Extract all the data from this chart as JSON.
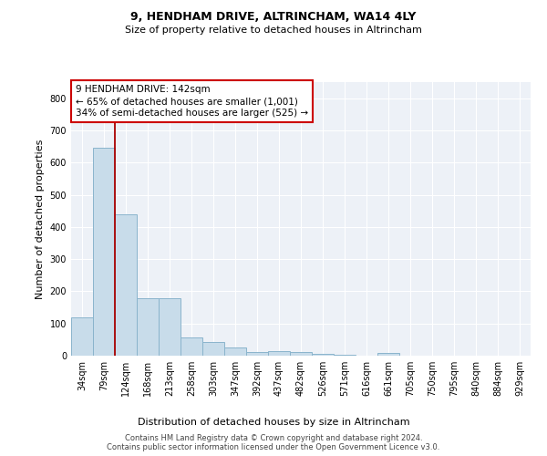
{
  "title1": "9, HENDHAM DRIVE, ALTRINCHAM, WA14 4LY",
  "title2": "Size of property relative to detached houses in Altrincham",
  "xlabel": "Distribution of detached houses by size in Altrincham",
  "ylabel": "Number of detached properties",
  "bar_color": "#c8dcea",
  "bar_edge_color": "#8ab4cc",
  "annotation_text": "9 HENDHAM DRIVE: 142sqm\n← 65% of detached houses are smaller (1,001)\n34% of semi-detached houses are larger (525) →",
  "footer1": "Contains HM Land Registry data © Crown copyright and database right 2024.",
  "footer2": "Contains public sector information licensed under the Open Government Licence v3.0.",
  "bin_labels": [
    "34sqm",
    "79sqm",
    "124sqm",
    "168sqm",
    "213sqm",
    "258sqm",
    "303sqm",
    "347sqm",
    "392sqm",
    "437sqm",
    "482sqm",
    "526sqm",
    "571sqm",
    "616sqm",
    "661sqm",
    "705sqm",
    "750sqm",
    "795sqm",
    "840sqm",
    "884sqm",
    "929sqm"
  ],
  "counts": [
    120,
    645,
    440,
    178,
    178,
    57,
    42,
    25,
    12,
    13,
    12,
    7,
    3,
    0,
    9,
    0,
    0,
    0,
    0,
    0,
    0
  ],
  "red_line_bin_index": 2,
  "ylim": [
    0,
    850
  ],
  "yticks": [
    0,
    100,
    200,
    300,
    400,
    500,
    600,
    700,
    800
  ],
  "axes_bg": "#edf1f7",
  "grid_color": "#ffffff",
  "title_fontsize": 9,
  "subtitle_fontsize": 8,
  "label_fontsize": 8,
  "tick_fontsize": 7,
  "ann_fontsize": 7.5,
  "footer_fontsize": 6
}
